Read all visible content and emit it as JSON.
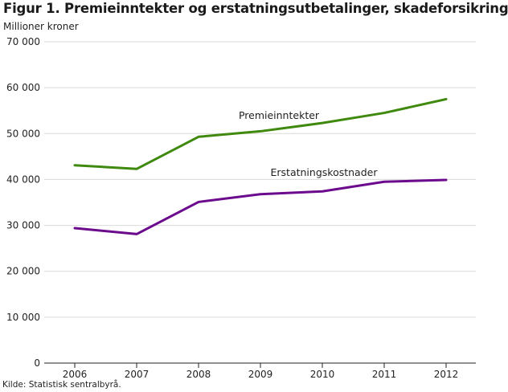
{
  "figure": {
    "title": "Figur 1. Premieinntekter og erstatningsutbetalinger, skadeforsikring",
    "unit_label": "Millioner kroner",
    "source": "Kilde: Statistisk sentralbyrå."
  },
  "chart_data": {
    "type": "line",
    "title": "Figur 1. Premieinntekter og erstatningsutbetalinger, skadeforsikring",
    "xlabel": "",
    "ylabel": "Millioner kroner",
    "x": [
      "2006",
      "2007",
      "2008",
      "2009",
      "2010",
      "2011",
      "2012"
    ],
    "ylim": [
      0,
      70000
    ],
    "yticks": [
      0,
      10000,
      20000,
      30000,
      40000,
      50000,
      60000,
      70000
    ],
    "ytick_labels": [
      "0",
      "10 000",
      "20 000",
      "30 000",
      "40 000",
      "50 000",
      "60 000",
      "70 000"
    ],
    "grid": "horizontal",
    "series": [
      {
        "name": "Premieinntekter",
        "color": "#3f8a0e",
        "values": [
          43100,
          42300,
          49300,
          50500,
          52300,
          54500,
          57500
        ]
      },
      {
        "name": "Erstatningskostnader",
        "color": "#6b0a8c",
        "values": [
          29400,
          28100,
          35100,
          36800,
          37400,
          39500,
          39900
        ]
      }
    ]
  }
}
